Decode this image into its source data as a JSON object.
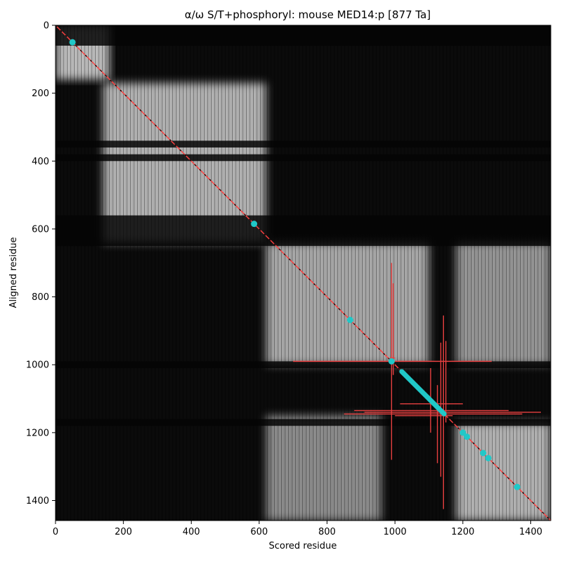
{
  "chart_data": {
    "type": "heatmap",
    "title": "α/ω S/T+phosphoryl: mouse MED14:p [877 Ta]",
    "xlabel": "Scored residue",
    "ylabel": "Aligned residue",
    "xlim": [
      0,
      1459
    ],
    "ylim": [
      1459,
      0
    ],
    "xticks": [
      0,
      200,
      400,
      600,
      800,
      1000,
      1200,
      1400
    ],
    "yticks": [
      0,
      200,
      400,
      600,
      800,
      1000,
      1200,
      1400
    ],
    "colormap": "greyscale",
    "blocks": [
      {
        "x": [
          0,
          160
        ],
        "y": [
          0,
          160
        ],
        "intensity": 0.8
      },
      {
        "x": [
          140,
          620
        ],
        "y": [
          170,
          640
        ],
        "intensity": 0.75
      },
      {
        "x": [
          620,
          1100
        ],
        "y": [
          640,
          1000
        ],
        "intensity": 0.7
      },
      {
        "x": [
          620,
          960
        ],
        "y": [
          1150,
          1459
        ],
        "intensity": 0.55
      },
      {
        "x": [
          1180,
          1459
        ],
        "y": [
          640,
          1000
        ],
        "intensity": 0.6
      },
      {
        "x": [
          1180,
          1459
        ],
        "y": [
          1170,
          1459
        ],
        "intensity": 0.75
      }
    ],
    "dark_bands_y": [
      [
        0,
        60
      ],
      [
        340,
        360
      ],
      [
        380,
        400
      ],
      [
        560,
        650
      ],
      [
        990,
        1010
      ],
      [
        1160,
        1180
      ]
    ],
    "diagonal_color": "#ff4040",
    "phosphosites": {
      "color": "#20c8c8",
      "points": [
        [
          50,
          50
        ],
        [
          585,
          585
        ],
        [
          868,
          868
        ],
        [
          990,
          990
        ],
        [
          1200,
          1200
        ],
        [
          1212,
          1212
        ],
        [
          1260,
          1260
        ],
        [
          1275,
          1275
        ],
        [
          1360,
          1360
        ]
      ],
      "segments": [
        [
          [
            1020,
            1020
          ],
          [
            1145,
            1145
          ]
        ]
      ]
    },
    "error_bars": {
      "color": "#e84040",
      "horizontal": [
        {
          "y": 990,
          "x": [
            700,
            1285
          ]
        },
        {
          "y": 980,
          "x": [
            985,
            1000
          ]
        },
        {
          "y": 1115,
          "x": [
            1015,
            1200
          ]
        },
        {
          "y": 1135,
          "x": [
            880,
            1335
          ]
        },
        {
          "y": 1140,
          "x": [
            910,
            1430
          ]
        },
        {
          "y": 1145,
          "x": [
            850,
            1375
          ]
        },
        {
          "y": 1150,
          "x": [
            1000,
            1170
          ]
        }
      ],
      "vertical": [
        {
          "x": 990,
          "y": [
            700,
            1280
          ]
        },
        {
          "x": 995,
          "y": [
            760,
            1030
          ]
        },
        {
          "x": 1105,
          "y": [
            1010,
            1200
          ]
        },
        {
          "x": 1125,
          "y": [
            1060,
            1290
          ]
        },
        {
          "x": 1135,
          "y": [
            935,
            1330
          ]
        },
        {
          "x": 1143,
          "y": [
            855,
            1425
          ]
        },
        {
          "x": 1150,
          "y": [
            930,
            1170
          ]
        }
      ]
    }
  }
}
